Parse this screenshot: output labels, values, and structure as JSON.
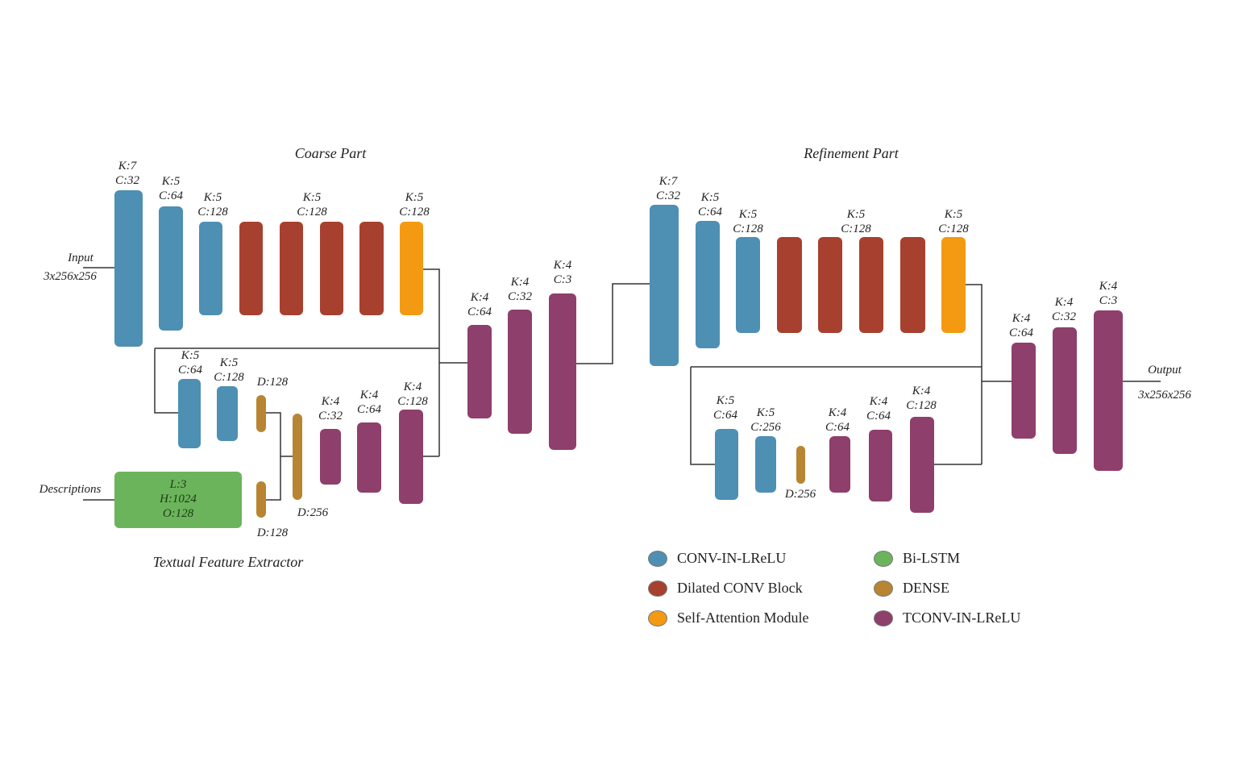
{
  "coarse": {
    "title": "Coarse Part",
    "input": "Input",
    "input_dim": "3x256x256",
    "l1": [
      "K:7",
      "C:32"
    ],
    "l2": [
      "K:5",
      "C:64"
    ],
    "l3": [
      "K:5",
      "C:128"
    ],
    "l4": [
      "K:5",
      "C:128"
    ],
    "l5": [
      "K:5",
      "C:128"
    ],
    "low1": [
      "K:5",
      "C:64"
    ],
    "low2": [
      "K:5",
      "C:128"
    ],
    "d1": "D:128",
    "d2": "D:256",
    "d3": "D:128",
    "t1": [
      "K:4",
      "C:32"
    ],
    "t2": [
      "K:4",
      "C:64"
    ],
    "t3": [
      "K:4",
      "C:128"
    ],
    "m1": [
      "K:4",
      "C:64"
    ],
    "m2": [
      "K:4",
      "C:32"
    ],
    "m3": [
      "K:4",
      "C:3"
    ]
  },
  "textual": {
    "title": "Textual Feature Extractor",
    "input": "Descriptions",
    "lstm": [
      "L:3",
      "H:1024",
      "O:128"
    ]
  },
  "refine": {
    "title": "Refinement Part",
    "l1": [
      "K:7",
      "C:32"
    ],
    "l2": [
      "K:5",
      "C:64"
    ],
    "l3": [
      "K:5",
      "C:128"
    ],
    "l4": [
      "K:5",
      "C:128"
    ],
    "l5": [
      "K:5",
      "C:128"
    ],
    "low1": [
      "K:5",
      "C:64"
    ],
    "low2": [
      "K:5",
      "C:256"
    ],
    "d1": "D:256",
    "t1": [
      "K:4",
      "C:64"
    ],
    "t2": [
      "K:4",
      "C:64"
    ],
    "t3": [
      "K:4",
      "C:128"
    ],
    "m1": [
      "K:4",
      "C:64"
    ],
    "m2": [
      "K:4",
      "C:32"
    ],
    "m3": [
      "K:4",
      "C:3"
    ],
    "output": "Output",
    "output_dim": "3x256x256"
  },
  "legend": [
    {
      "label": "CONV-IN-LReLU",
      "color": "#4e8fb4"
    },
    {
      "label": "Dilated CONV Block",
      "color": "#a8402f"
    },
    {
      "label": "Self-Attention Module",
      "color": "#f39a12"
    },
    {
      "label": "Bi-LSTM",
      "color": "#6bb45b"
    },
    {
      "label": "DENSE",
      "color": "#b88533"
    },
    {
      "label": "TCONV-IN-LReLU",
      "color": "#8e3f6b"
    }
  ]
}
